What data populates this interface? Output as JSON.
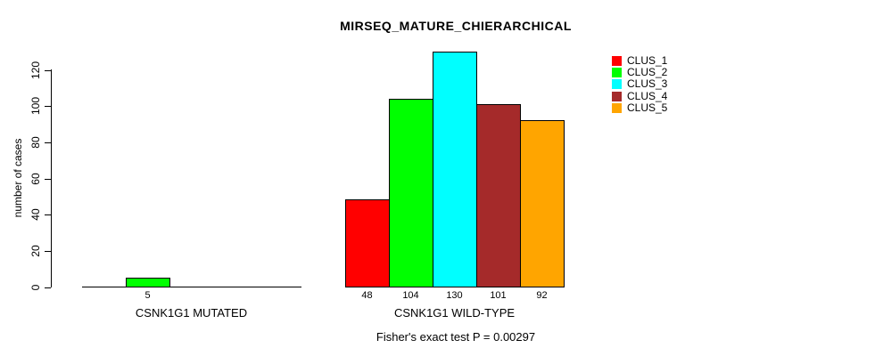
{
  "chart_data": {
    "type": "bar",
    "title": "MIRSEQ_MATURE_CHIERARCHICAL",
    "ylabel": "number of cases",
    "xlabel": "",
    "ylim": [
      0,
      130
    ],
    "yticks": [
      0,
      20,
      40,
      60,
      80,
      100,
      120
    ],
    "grid": false,
    "legend_position": "top-right",
    "legend": [
      {
        "label": "CLUS_1",
        "color": "#ff0000"
      },
      {
        "label": "CLUS_2",
        "color": "#00ff00"
      },
      {
        "label": "CLUS_3",
        "color": "#00ffff"
      },
      {
        "label": "CLUS_4",
        "color": "#a52a2a"
      },
      {
        "label": "CLUS_5",
        "color": "#ffa500"
      }
    ],
    "groups": [
      {
        "label": "CSNK1G1 MUTATED",
        "values": [
          0,
          5,
          0,
          0,
          0
        ],
        "value_labels": [
          "",
          "5",
          "",
          "",
          ""
        ]
      },
      {
        "label": "CSNK1G1 WILD-TYPE",
        "values": [
          48,
          104,
          130,
          101,
          92
        ],
        "value_labels": [
          "48",
          "104",
          "130",
          "101",
          "92"
        ]
      }
    ],
    "annotation": "Fisher's exact test P = 0.00297"
  }
}
